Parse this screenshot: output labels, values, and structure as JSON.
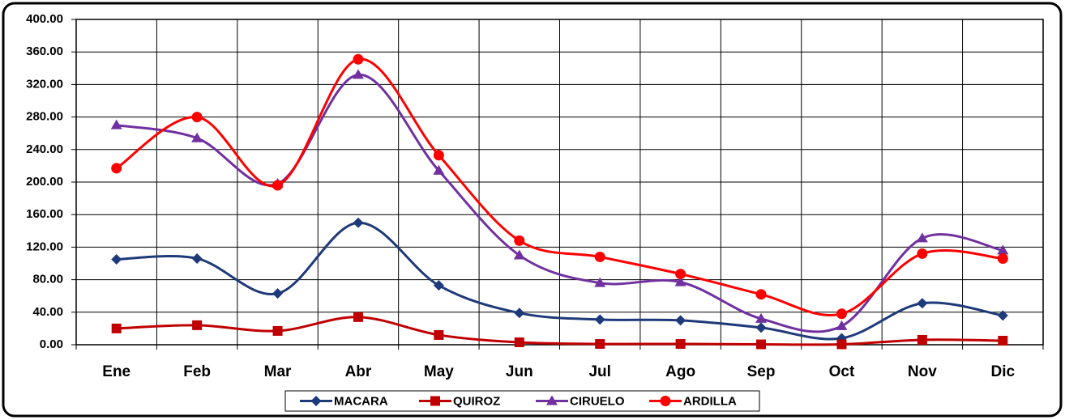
{
  "chart_data": {
    "type": "line",
    "categories": [
      "Ene",
      "Feb",
      "Mar",
      "Abr",
      "May",
      "Jun",
      "Jul",
      "Ago",
      "Sep",
      "Oct",
      "Nov",
      "Dic"
    ],
    "series": [
      {
        "name": "MACARA",
        "color": "#1f3a7a",
        "marker": "diamond",
        "values": [
          105,
          106,
          63,
          150,
          73,
          39,
          31,
          30,
          21,
          8,
          51,
          36
        ]
      },
      {
        "name": "QUIROZ",
        "color": "#c00000",
        "marker": "square",
        "values": [
          20,
          24,
          17,
          34,
          12,
          3,
          1,
          1,
          0.5,
          0.5,
          6,
          5
        ]
      },
      {
        "name": "CIRUELO",
        "color": "#7030a0",
        "marker": "triangle",
        "values": [
          270,
          254,
          198,
          332,
          214,
          110,
          76,
          77,
          32,
          23,
          131,
          116
        ]
      },
      {
        "name": "ARDILLA",
        "color": "#ff0000",
        "marker": "circle",
        "values": [
          217,
          280,
          196,
          351,
          233,
          128,
          108,
          87,
          62,
          38,
          112,
          106
        ]
      }
    ],
    "ylim": [
      0,
      400
    ],
    "yticks": [
      {
        "value": 0,
        "label": "0.00"
      },
      {
        "value": 40,
        "label": "40.00"
      },
      {
        "value": 80,
        "label": "80.00"
      },
      {
        "value": 120,
        "label": "120.00"
      },
      {
        "value": 160,
        "label": "160.00"
      },
      {
        "value": 200,
        "label": "200.00"
      },
      {
        "value": 240,
        "label": "240.00"
      },
      {
        "value": 280,
        "label": "280.00"
      },
      {
        "value": 320,
        "label": "320.00"
      },
      {
        "value": 360,
        "label": "360.00"
      },
      {
        "value": 400,
        "label": "400.00"
      }
    ],
    "grid": true,
    "legend": "bottom"
  }
}
